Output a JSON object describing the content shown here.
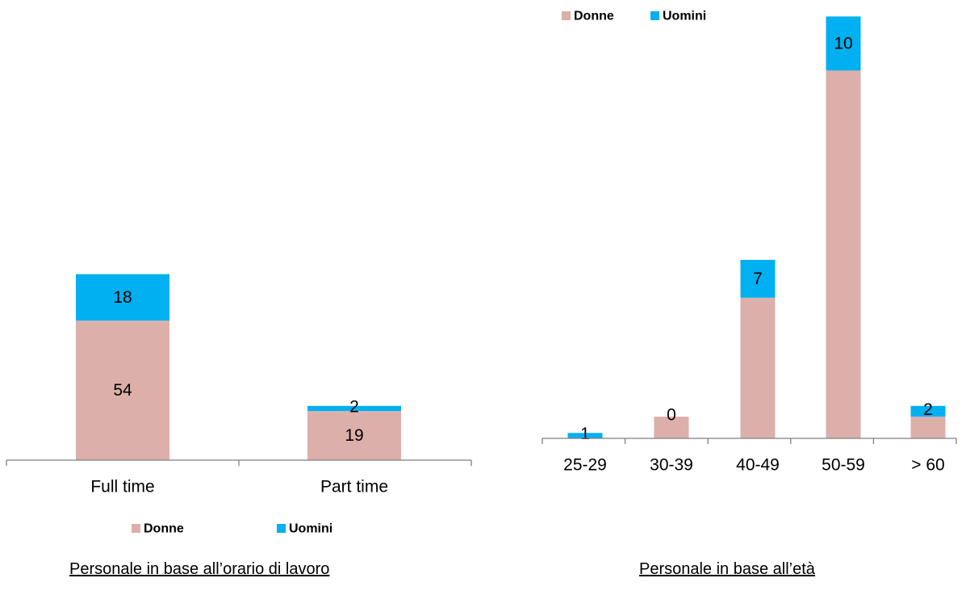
{
  "colors": {
    "donne": "#DDAFAA",
    "uomini": "#00B0F0",
    "axis": "#7F7F7F"
  },
  "chart_data": [
    {
      "type": "bar",
      "stacked": true,
      "categories": [
        "Full time",
        "Part time"
      ],
      "series": [
        {
          "name": "Donne",
          "values": [
            54,
            19
          ]
        },
        {
          "name": "Uomini",
          "values": [
            18,
            2
          ]
        }
      ],
      "legend_position": "bottom",
      "caption": "Personale in base all’orario di lavoro"
    },
    {
      "type": "bar",
      "stacked": true,
      "categories": [
        "25-29",
        "30-39",
        "40-49",
        "50-59",
        "> 60"
      ],
      "series": [
        {
          "name": "Donne",
          "values": [
            0,
            4,
            26,
            68,
            4
          ]
        },
        {
          "name": "Uomini",
          "values": [
            1,
            0,
            7,
            10,
            2
          ]
        }
      ],
      "legend_position": "top-left",
      "caption": "Personale in base all’età"
    }
  ]
}
